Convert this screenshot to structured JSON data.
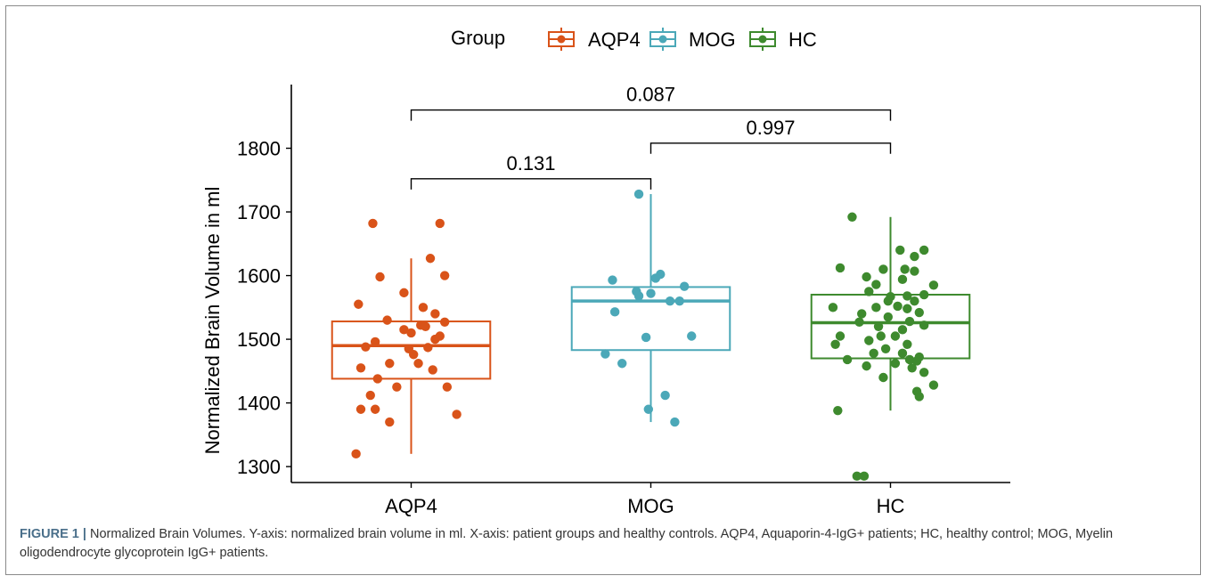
{
  "chart_data": {
    "type": "boxplot",
    "title": "",
    "xlabel": "",
    "ylabel": "Normalized Brain Volume in ml",
    "ylim": [
      1275,
      1900
    ],
    "yticks": [
      1300,
      1400,
      1500,
      1600,
      1700,
      1800
    ],
    "categories": [
      "AQP4",
      "MOG",
      "HC"
    ],
    "legend": {
      "title": "Group",
      "position": "top",
      "entries": [
        "AQP4",
        "MOG",
        "HC"
      ]
    },
    "grid": false,
    "series": [
      {
        "name": "AQP4",
        "color": "#D95319",
        "box": {
          "whisker_low": 1320,
          "q1": 1438,
          "median": 1490,
          "q3": 1528,
          "whisker_high": 1627
        },
        "points": [
          [
            -0.16,
            1682
          ],
          [
            0.12,
            1682
          ],
          [
            0.08,
            1627
          ],
          [
            -0.13,
            1598
          ],
          [
            0.14,
            1600
          ],
          [
            -0.03,
            1573
          ],
          [
            -0.22,
            1555
          ],
          [
            0.05,
            1550
          ],
          [
            0.1,
            1540
          ],
          [
            -0.1,
            1530
          ],
          [
            0.14,
            1527
          ],
          [
            0.04,
            1522
          ],
          [
            0.06,
            1520
          ],
          [
            -0.03,
            1515
          ],
          [
            0.0,
            1510
          ],
          [
            0.12,
            1505
          ],
          [
            0.1,
            1500
          ],
          [
            -0.15,
            1496
          ],
          [
            -0.19,
            1488
          ],
          [
            0.07,
            1487
          ],
          [
            -0.01,
            1485
          ],
          [
            0.01,
            1476
          ],
          [
            0.03,
            1462
          ],
          [
            -0.09,
            1462
          ],
          [
            -0.21,
            1455
          ],
          [
            0.09,
            1452
          ],
          [
            -0.14,
            1438
          ],
          [
            -0.06,
            1425
          ],
          [
            0.15,
            1425
          ],
          [
            -0.17,
            1412
          ],
          [
            -0.21,
            1390
          ],
          [
            -0.15,
            1390
          ],
          [
            0.19,
            1382
          ],
          [
            -0.09,
            1370
          ],
          [
            -0.23,
            1320
          ]
        ]
      },
      {
        "name": "MOG",
        "color": "#4BA8B8",
        "box": {
          "whisker_low": 1370,
          "q1": 1483,
          "median": 1560,
          "q3": 1582,
          "whisker_high": 1728
        },
        "points": [
          [
            -0.05,
            1728
          ],
          [
            0.04,
            1602
          ],
          [
            -0.16,
            1593
          ],
          [
            0.02,
            1596
          ],
          [
            0.14,
            1583
          ],
          [
            -0.06,
            1575
          ],
          [
            -0.05,
            1568
          ],
          [
            0.0,
            1572
          ],
          [
            0.08,
            1560
          ],
          [
            0.12,
            1560
          ],
          [
            -0.15,
            1543
          ],
          [
            -0.02,
            1503
          ],
          [
            0.17,
            1505
          ],
          [
            -0.19,
            1477
          ],
          [
            -0.12,
            1462
          ],
          [
            0.06,
            1412
          ],
          [
            -0.01,
            1390
          ],
          [
            0.1,
            1370
          ]
        ]
      },
      {
        "name": "HC",
        "color": "#3E8A2E",
        "box": {
          "whisker_low": 1388,
          "q1": 1470,
          "median": 1526,
          "q3": 1570,
          "whisker_high": 1692
        },
        "points": [
          [
            -0.16,
            1692
          ],
          [
            0.04,
            1640
          ],
          [
            0.14,
            1640
          ],
          [
            0.1,
            1630
          ],
          [
            -0.21,
            1612
          ],
          [
            -0.03,
            1610
          ],
          [
            0.06,
            1610
          ],
          [
            0.1,
            1607
          ],
          [
            -0.1,
            1598
          ],
          [
            0.05,
            1594
          ],
          [
            -0.06,
            1586
          ],
          [
            0.18,
            1585
          ],
          [
            -0.09,
            1575
          ],
          [
            0.14,
            1570
          ],
          [
            0.0,
            1567
          ],
          [
            0.07,
            1568
          ],
          [
            -0.01,
            1560
          ],
          [
            0.1,
            1560
          ],
          [
            -0.24,
            1550
          ],
          [
            -0.06,
            1550
          ],
          [
            0.03,
            1552
          ],
          [
            0.07,
            1548
          ],
          [
            -0.12,
            1540
          ],
          [
            0.12,
            1542
          ],
          [
            -0.01,
            1535
          ],
          [
            0.08,
            1528
          ],
          [
            -0.13,
            1527
          ],
          [
            -0.05,
            1520
          ],
          [
            0.14,
            1522
          ],
          [
            0.05,
            1515
          ],
          [
            -0.04,
            1505
          ],
          [
            0.02,
            1505
          ],
          [
            -0.21,
            1505
          ],
          [
            -0.09,
            1498
          ],
          [
            -0.23,
            1492
          ],
          [
            0.07,
            1492
          ],
          [
            -0.02,
            1485
          ],
          [
            0.05,
            1478
          ],
          [
            -0.07,
            1478
          ],
          [
            0.12,
            1472
          ],
          [
            0.08,
            1468
          ],
          [
            -0.18,
            1468
          ],
          [
            0.11,
            1466
          ],
          [
            0.02,
            1462
          ],
          [
            -0.1,
            1458
          ],
          [
            0.09,
            1455
          ],
          [
            0.14,
            1448
          ],
          [
            -0.03,
            1440
          ],
          [
            0.18,
            1428
          ],
          [
            0.11,
            1418
          ],
          [
            0.12,
            1410
          ],
          [
            -0.22,
            1388
          ],
          [
            -0.14,
            1285
          ],
          [
            -0.11,
            1285
          ]
        ]
      }
    ],
    "annotations": [
      {
        "from": "AQP4",
        "to": "MOG",
        "label": "0.131",
        "y": 1752
      },
      {
        "from": "MOG",
        "to": "HC",
        "label": "0.997",
        "y": 1808
      },
      {
        "from": "AQP4",
        "to": "HC",
        "label": "0.087",
        "y": 1860
      }
    ]
  },
  "caption": {
    "lead": "FIGURE 1 |",
    "text": " Normalized Brain Volumes. Y-axis: normalized brain volume in ml. X-axis: patient groups and healthy controls. AQP4, Aquaporin-4-IgG+ patients; HC, healthy control; MOG, Myelin oligodendrocyte glycoprotein IgG+ patients."
  }
}
